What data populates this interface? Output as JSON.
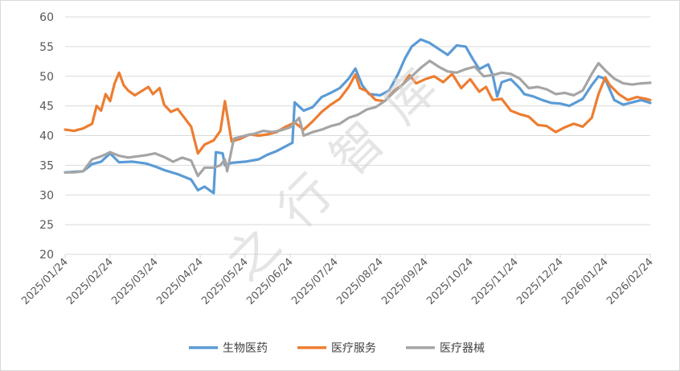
{
  "chart_data": {
    "type": "line",
    "title": "",
    "xlabel": "",
    "ylabel": "",
    "ylim": [
      20,
      60
    ],
    "yticks": [
      20,
      25,
      30,
      35,
      40,
      45,
      50,
      55,
      60
    ],
    "xticks": [
      "2025/01/24",
      "2025/02/24",
      "2025/03/24",
      "2025/04/24",
      "2025/05/24",
      "2025/06/24",
      "2025/07/24",
      "2025/08/24",
      "2025/09/24",
      "2025/10/24",
      "2025/11/24",
      "2025/12/24",
      "2026/01/24",
      "2026/02/24"
    ],
    "grid": "horizontal",
    "legend": "bottom",
    "watermark": "之行智库",
    "series": [
      {
        "name": "生物医药",
        "color": "#5b9bd5",
        "points": [
          [
            0,
            33.8
          ],
          [
            0.2,
            33.9
          ],
          [
            0.4,
            34.0
          ],
          [
            0.6,
            35.2
          ],
          [
            0.8,
            35.6
          ],
          [
            1.0,
            37.0
          ],
          [
            1.2,
            35.5
          ],
          [
            1.5,
            35.6
          ],
          [
            1.8,
            35.3
          ],
          [
            2.0,
            34.8
          ],
          [
            2.2,
            34.2
          ],
          [
            2.5,
            33.5
          ],
          [
            2.8,
            32.6
          ],
          [
            2.95,
            30.8
          ],
          [
            3.1,
            31.4
          ],
          [
            3.3,
            30.3
          ],
          [
            3.35,
            37.2
          ],
          [
            3.5,
            37.0
          ],
          [
            3.55,
            35.0
          ],
          [
            3.7,
            35.4
          ],
          [
            4.0,
            35.6
          ],
          [
            4.3,
            36.0
          ],
          [
            4.5,
            36.8
          ],
          [
            4.7,
            37.4
          ],
          [
            4.9,
            38.2
          ],
          [
            5.05,
            38.8
          ],
          [
            5.1,
            45.6
          ],
          [
            5.3,
            44.2
          ],
          [
            5.5,
            44.8
          ],
          [
            5.7,
            46.5
          ],
          [
            5.9,
            47.2
          ],
          [
            6.1,
            48.0
          ],
          [
            6.3,
            49.6
          ],
          [
            6.45,
            51.3
          ],
          [
            6.6,
            48.5
          ],
          [
            6.75,
            47.0
          ],
          [
            7.0,
            46.8
          ],
          [
            7.2,
            47.6
          ],
          [
            7.4,
            50.4
          ],
          [
            7.55,
            53.0
          ],
          [
            7.7,
            55.0
          ],
          [
            7.9,
            56.2
          ],
          [
            8.1,
            55.6
          ],
          [
            8.3,
            54.6
          ],
          [
            8.5,
            53.6
          ],
          [
            8.7,
            55.2
          ],
          [
            8.9,
            55.0
          ],
          [
            9.05,
            53.0
          ],
          [
            9.2,
            51.2
          ],
          [
            9.4,
            52.0
          ],
          [
            9.5,
            50.2
          ],
          [
            9.6,
            46.6
          ],
          [
            9.7,
            49.0
          ],
          [
            9.9,
            49.5
          ],
          [
            10.1,
            48.0
          ],
          [
            10.2,
            47.0
          ],
          [
            10.4,
            46.6
          ],
          [
            10.6,
            46.0
          ],
          [
            10.8,
            45.5
          ],
          [
            11.0,
            45.4
          ],
          [
            11.2,
            45.0
          ],
          [
            11.5,
            46.2
          ],
          [
            11.7,
            48.5
          ],
          [
            11.85,
            50.0
          ],
          [
            12.0,
            49.5
          ],
          [
            12.2,
            46.0
          ],
          [
            12.4,
            45.2
          ],
          [
            12.6,
            45.6
          ],
          [
            12.8,
            46.0
          ],
          [
            13.0,
            45.5
          ]
        ]
      },
      {
        "name": "医疗服务",
        "color": "#ed7d31",
        "points": [
          [
            0,
            41.0
          ],
          [
            0.2,
            40.8
          ],
          [
            0.4,
            41.2
          ],
          [
            0.6,
            42.0
          ],
          [
            0.7,
            45.0
          ],
          [
            0.8,
            44.2
          ],
          [
            0.9,
            47.0
          ],
          [
            1.0,
            45.8
          ],
          [
            1.1,
            48.8
          ],
          [
            1.2,
            50.6
          ],
          [
            1.3,
            48.5
          ],
          [
            1.4,
            47.6
          ],
          [
            1.55,
            46.8
          ],
          [
            1.7,
            47.5
          ],
          [
            1.85,
            48.2
          ],
          [
            1.95,
            47.0
          ],
          [
            2.1,
            48.0
          ],
          [
            2.2,
            45.2
          ],
          [
            2.35,
            44.0
          ],
          [
            2.5,
            44.5
          ],
          [
            2.6,
            43.5
          ],
          [
            2.8,
            41.5
          ],
          [
            2.95,
            37.0
          ],
          [
            3.1,
            38.5
          ],
          [
            3.3,
            39.2
          ],
          [
            3.45,
            40.8
          ],
          [
            3.55,
            45.8
          ],
          [
            3.7,
            39.0
          ],
          [
            3.9,
            39.5
          ],
          [
            4.1,
            40.2
          ],
          [
            4.3,
            40.0
          ],
          [
            4.5,
            40.2
          ],
          [
            4.7,
            40.6
          ],
          [
            4.9,
            41.5
          ],
          [
            5.1,
            42.2
          ],
          [
            5.3,
            41.0
          ],
          [
            5.5,
            42.4
          ],
          [
            5.7,
            44.0
          ],
          [
            5.9,
            45.2
          ],
          [
            6.1,
            46.2
          ],
          [
            6.3,
            48.2
          ],
          [
            6.45,
            50.3
          ],
          [
            6.55,
            48.0
          ],
          [
            6.7,
            47.5
          ],
          [
            6.9,
            46.0
          ],
          [
            7.1,
            45.8
          ],
          [
            7.3,
            47.5
          ],
          [
            7.5,
            48.6
          ],
          [
            7.65,
            50.2
          ],
          [
            7.8,
            48.8
          ],
          [
            8.0,
            49.5
          ],
          [
            8.2,
            50.0
          ],
          [
            8.4,
            49.0
          ],
          [
            8.6,
            50.4
          ],
          [
            8.8,
            48.0
          ],
          [
            9.0,
            49.5
          ],
          [
            9.2,
            47.4
          ],
          [
            9.35,
            48.2
          ],
          [
            9.5,
            46.0
          ],
          [
            9.7,
            46.2
          ],
          [
            9.9,
            44.2
          ],
          [
            10.1,
            43.6
          ],
          [
            10.3,
            43.2
          ],
          [
            10.5,
            41.8
          ],
          [
            10.7,
            41.6
          ],
          [
            10.9,
            40.6
          ],
          [
            11.1,
            41.4
          ],
          [
            11.3,
            42.0
          ],
          [
            11.5,
            41.5
          ],
          [
            11.7,
            43.0
          ],
          [
            11.85,
            47.0
          ],
          [
            12.0,
            49.8
          ],
          [
            12.1,
            48.5
          ],
          [
            12.3,
            47.0
          ],
          [
            12.5,
            46.0
          ],
          [
            12.7,
            46.5
          ],
          [
            12.9,
            46.2
          ],
          [
            13.0,
            46.0
          ]
        ]
      },
      {
        "name": "医疗器械",
        "color": "#a5a5a5",
        "points": [
          [
            0,
            33.8
          ],
          [
            0.2,
            33.8
          ],
          [
            0.4,
            34.0
          ],
          [
            0.6,
            36.0
          ],
          [
            0.8,
            36.5
          ],
          [
            1.0,
            37.2
          ],
          [
            1.2,
            36.6
          ],
          [
            1.4,
            36.3
          ],
          [
            1.6,
            36.5
          ],
          [
            1.8,
            36.7
          ],
          [
            2.0,
            37.0
          ],
          [
            2.2,
            36.4
          ],
          [
            2.4,
            35.6
          ],
          [
            2.6,
            36.3
          ],
          [
            2.8,
            35.8
          ],
          [
            2.95,
            33.2
          ],
          [
            3.1,
            34.6
          ],
          [
            3.3,
            34.6
          ],
          [
            3.45,
            35.0
          ],
          [
            3.55,
            36.0
          ],
          [
            3.6,
            34.0
          ],
          [
            3.75,
            39.5
          ],
          [
            4.0,
            40.0
          ],
          [
            4.2,
            40.3
          ],
          [
            4.4,
            40.8
          ],
          [
            4.6,
            40.6
          ],
          [
            4.8,
            40.9
          ],
          [
            5.0,
            41.4
          ],
          [
            5.2,
            43.0
          ],
          [
            5.3,
            40.0
          ],
          [
            5.5,
            40.6
          ],
          [
            5.7,
            41.0
          ],
          [
            5.9,
            41.6
          ],
          [
            6.1,
            42.0
          ],
          [
            6.3,
            43.0
          ],
          [
            6.5,
            43.5
          ],
          [
            6.7,
            44.4
          ],
          [
            6.9,
            44.8
          ],
          [
            7.1,
            45.8
          ],
          [
            7.3,
            47.3
          ],
          [
            7.5,
            48.6
          ],
          [
            7.7,
            50.0
          ],
          [
            7.9,
            51.4
          ],
          [
            8.1,
            52.6
          ],
          [
            8.3,
            51.6
          ],
          [
            8.5,
            50.8
          ],
          [
            8.7,
            50.6
          ],
          [
            8.9,
            51.2
          ],
          [
            9.1,
            51.6
          ],
          [
            9.3,
            50.0
          ],
          [
            9.5,
            50.2
          ],
          [
            9.7,
            50.6
          ],
          [
            9.9,
            50.4
          ],
          [
            10.1,
            49.6
          ],
          [
            10.3,
            48.0
          ],
          [
            10.5,
            48.2
          ],
          [
            10.7,
            47.8
          ],
          [
            10.9,
            47.0
          ],
          [
            11.1,
            47.2
          ],
          [
            11.3,
            46.8
          ],
          [
            11.5,
            47.6
          ],
          [
            11.7,
            50.4
          ],
          [
            11.85,
            52.2
          ],
          [
            12.0,
            51.0
          ],
          [
            12.2,
            49.6
          ],
          [
            12.4,
            48.8
          ],
          [
            12.6,
            48.6
          ],
          [
            12.8,
            48.8
          ],
          [
            13.0,
            48.9
          ]
        ]
      }
    ]
  }
}
